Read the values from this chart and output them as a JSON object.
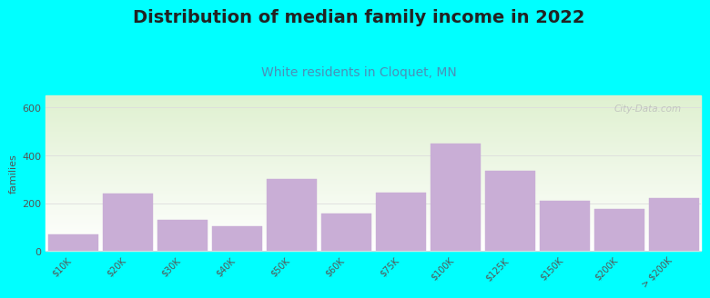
{
  "title": "Distribution of median family income in 2022",
  "subtitle": "White residents in Cloquet, MN",
  "ylabel": "families",
  "categories": [
    "$10K",
    "$20K",
    "$30K",
    "$40K",
    "$50K",
    "$60K",
    "$75K",
    "$100K",
    "$125K",
    "$150K",
    "$200K",
    "> $200K"
  ],
  "values": [
    70,
    240,
    130,
    105,
    300,
    155,
    245,
    450,
    335,
    210,
    175,
    220
  ],
  "bar_color": "#c9aed6",
  "bar_edgecolor": "#c9aed6",
  "background_color": "#00ffff",
  "grad_top": "#dff0d0",
  "grad_bottom": "#ffffff",
  "title_fontsize": 14,
  "title_fontweight": "bold",
  "subtitle_fontsize": 10,
  "subtitle_color": "#4a90b8",
  "ylabel_fontsize": 8,
  "yticks": [
    0,
    200,
    400,
    600
  ],
  "ylim": [
    0,
    650
  ],
  "watermark": "City-Data.com",
  "tick_label_fontsize": 7,
  "grid_color": "#dddddd"
}
